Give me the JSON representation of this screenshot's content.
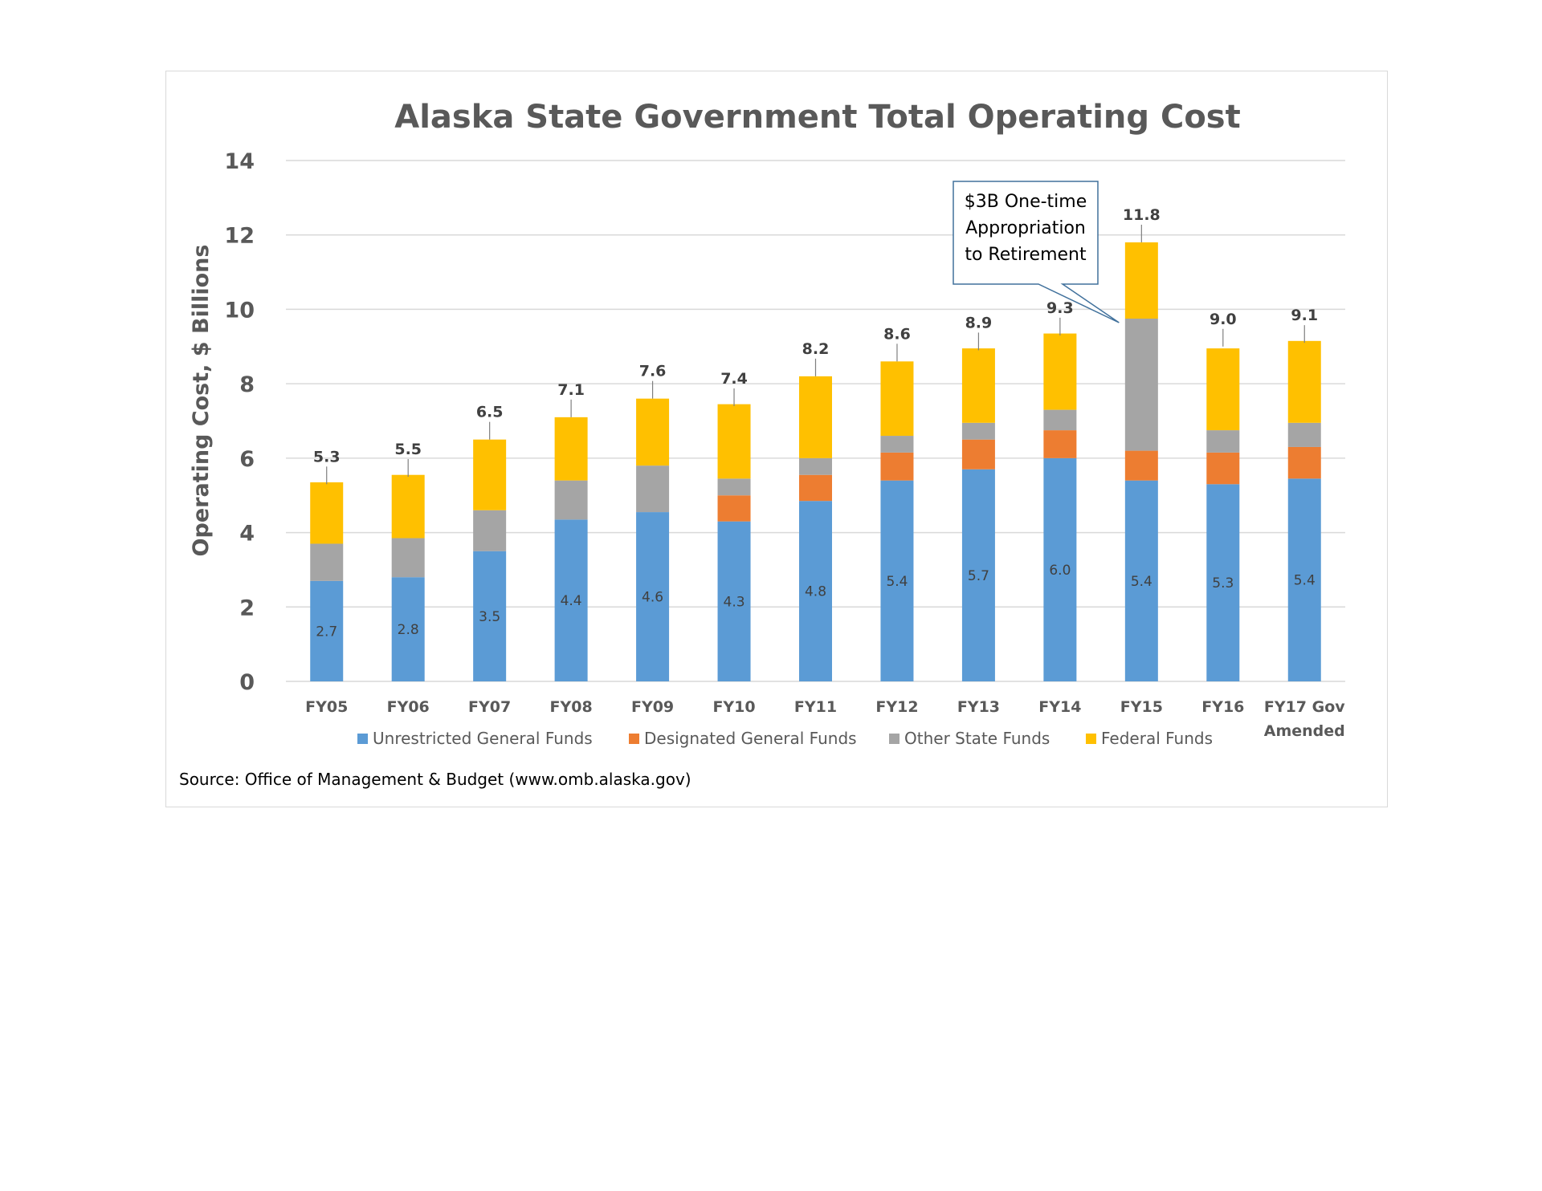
{
  "chart_data": {
    "type": "bar",
    "stacked": true,
    "title": "Alaska State Government Total Operating Cost",
    "ylabel": "Operating Cost, $ Billions",
    "xlabel": "",
    "ylim": [
      0,
      14
    ],
    "yticks": [
      0,
      2,
      4,
      6,
      8,
      10,
      12,
      14
    ],
    "grid": true,
    "legend_position": "bottom",
    "categories": [
      [
        "FY05"
      ],
      [
        "FY06"
      ],
      [
        "FY07"
      ],
      [
        "FY08"
      ],
      [
        "FY09"
      ],
      [
        "FY10"
      ],
      [
        "FY11"
      ],
      [
        "FY12"
      ],
      [
        "FY13"
      ],
      [
        "FY14"
      ],
      [
        "FY15"
      ],
      [
        "FY16"
      ],
      [
        "FY17 Gov",
        "Amended"
      ]
    ],
    "series": [
      {
        "name": "Unrestricted General Funds",
        "color": "#5b9bd5",
        "values": [
          2.7,
          2.8,
          3.5,
          4.35,
          4.55,
          4.3,
          4.85,
          5.4,
          5.7,
          6.0,
          5.4,
          5.3,
          5.45
        ],
        "labels": [
          "2.7",
          "2.8",
          "3.5",
          "4.4",
          "4.6",
          "4.3",
          "4.8",
          "5.4",
          "5.7",
          "6.0",
          "5.4",
          "5.3",
          "5.4"
        ]
      },
      {
        "name": "Designated General Funds",
        "color": "#ed7d31",
        "values": [
          0,
          0,
          0,
          0,
          0,
          0.7,
          0.7,
          0.75,
          0.8,
          0.75,
          0.8,
          0.85,
          0.85
        ]
      },
      {
        "name": "Other State Funds",
        "color": "#a5a5a5",
        "values": [
          1.0,
          1.05,
          1.1,
          1.05,
          1.25,
          0.45,
          0.45,
          0.45,
          0.45,
          0.55,
          3.55,
          0.6,
          0.65
        ]
      },
      {
        "name": "Federal Funds",
        "color": "#ffc000",
        "values": [
          1.65,
          1.7,
          1.9,
          1.7,
          1.8,
          2.0,
          2.2,
          2.0,
          2.0,
          2.05,
          2.05,
          2.2,
          2.2
        ]
      }
    ],
    "totals": [
      5.3,
      5.5,
      6.5,
      7.1,
      7.6,
      7.4,
      8.2,
      8.6,
      8.9,
      9.3,
      11.8,
      9.0,
      9.1
    ],
    "total_labels": [
      "5.3",
      "5.5",
      "6.5",
      "7.1",
      "7.6",
      "7.4",
      "8.2",
      "8.6",
      "8.9",
      "9.3",
      "11.8",
      "9.0",
      "9.1"
    ],
    "annotation": {
      "lines": [
        "$3B One-time",
        "Appropriation",
        "to Retirement"
      ],
      "target_category": "FY15"
    },
    "source": "Source: Office of Management & Budget (www.omb.alaska.gov)"
  },
  "colors": {
    "gridline": "#d9d9d9",
    "axis_text": "#595959",
    "frame_border": "#d9d9d9",
    "callout_border": "#41719c"
  }
}
